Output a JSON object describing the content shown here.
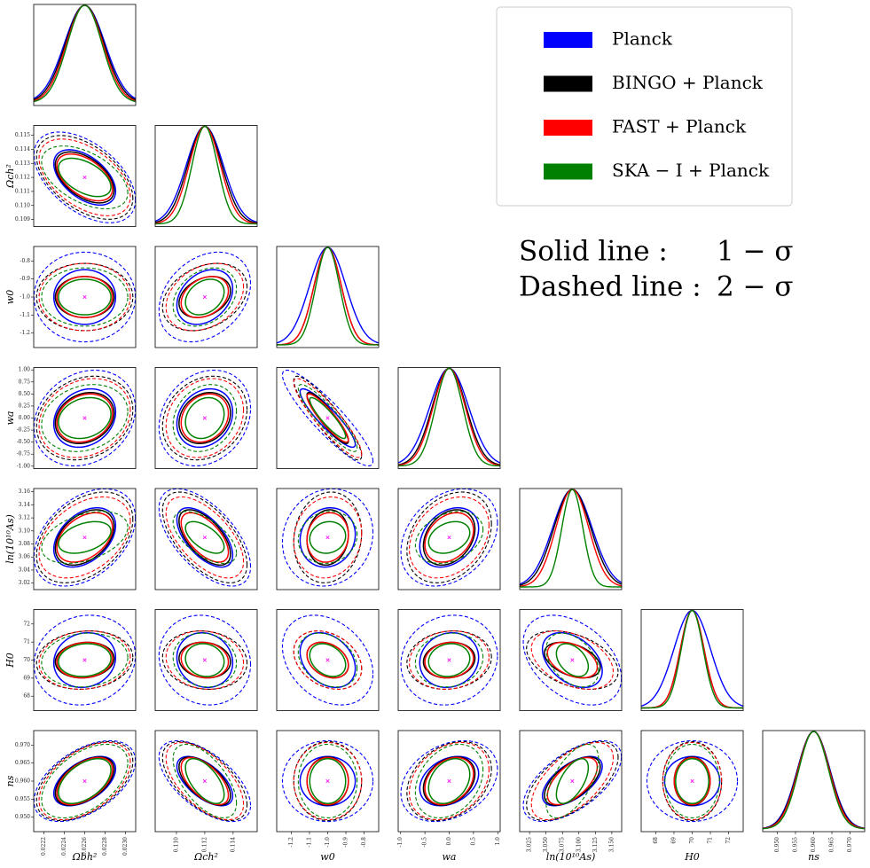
{
  "chart_data": {
    "type": "corner",
    "params": [
      {
        "label": "Ωbh²",
        "fiducial": 0.0226,
        "lim": [
          0.0221,
          0.0231
        ],
        "xticks": [
          0.0222,
          0.0224,
          0.0226,
          0.0228,
          {
            "value": 0.023,
            "label": "0.0230"
          }
        ],
        "yticks": []
      },
      {
        "label": "Ωch²",
        "fiducial": 0.112,
        "lim": [
          0.1085,
          0.1157
        ],
        "xticks": [
          {
            "value": 0.11,
            "label": "0.110"
          },
          0.112,
          0.114
        ],
        "yticks": [
          0.109,
          {
            "value": 0.11,
            "label": "0.110"
          },
          0.111,
          0.112,
          0.113,
          0.114,
          0.115
        ]
      },
      {
        "label": "w0",
        "fiducial": -1,
        "lim": [
          -1.28,
          -0.72
        ],
        "xticks": [
          -1.2,
          -1.1,
          {
            "value": -1,
            "label": "-1.0"
          },
          -0.9,
          -0.8
        ],
        "yticks": [
          -1.2,
          -1.1,
          {
            "value": -1,
            "label": "-1.0"
          },
          -0.9,
          -0.8
        ]
      },
      {
        "label": "wa",
        "fiducial": 0,
        "lim": [
          -1.05,
          1.05
        ],
        "xticks": [
          {
            "value": -1,
            "label": "-1.0"
          },
          -0.5,
          {
            "value": 0,
            "label": "0.0"
          },
          0.5,
          {
            "value": 1,
            "label": "1.0"
          }
        ],
        "yticks": [
          {
            "value": -1,
            "label": "-1.00"
          },
          -0.75,
          {
            "value": -0.5,
            "label": "-0.50"
          },
          -0.25,
          {
            "value": 0,
            "label": "0.00"
          },
          0.25,
          {
            "value": 0.5,
            "label": "0.50"
          },
          0.75,
          {
            "value": 1,
            "label": "1.00"
          }
        ]
      },
      {
        "label": "ln(10¹⁰As)",
        "fiducial": 3.09,
        "lim": [
          3.01,
          3.165
        ],
        "xticks": [
          3.025,
          {
            "value": 3.05,
            "label": "3.050"
          },
          3.075,
          {
            "value": 3.1,
            "label": "3.100"
          },
          3.125,
          {
            "value": 3.15,
            "label": "3.150"
          }
        ],
        "yticks": [
          3.02,
          3.04,
          3.06,
          3.08,
          {
            "value": 3.1,
            "label": "3.10"
          },
          3.12,
          3.14,
          3.16
        ]
      },
      {
        "label": "H0",
        "fiducial": 70,
        "lim": [
          67.2,
          72.8
        ],
        "xticks": [
          68,
          69,
          70,
          71,
          72
        ],
        "yticks": [
          68,
          69,
          70,
          71,
          72
        ]
      },
      {
        "label": "ns",
        "fiducial": 0.96,
        "lim": [
          0.946,
          0.974
        ],
        "xticks": [
          {
            "value": 0.95,
            "label": "0.950"
          },
          0.955,
          {
            "value": 0.96,
            "label": "0.960"
          },
          0.965,
          {
            "value": 0.97,
            "label": "0.970"
          }
        ],
        "yticks": [
          {
            "value": 0.95,
            "label": "0.950"
          },
          0.955,
          {
            "value": 0.96,
            "label": "0.960"
          },
          0.965,
          {
            "value": 0.97,
            "label": "0.970"
          }
        ]
      }
    ],
    "correlations": [
      [
        -0.5
      ],
      [
        0,
        0.3
      ],
      [
        0.2,
        0.2,
        -0.9
      ],
      [
        0.4,
        -0.6,
        0.1,
        0.3
      ],
      [
        0.1,
        -0.1,
        -0.3,
        0.1,
        -0.4
      ],
      [
        0.5,
        -0.6,
        0,
        0.3,
        0.6,
        0
      ]
    ],
    "series": [
      {
        "name": "Planck",
        "color": "#0000ff",
        "sigmas": [
          0.0002,
          0.0013,
          0.1,
          0.4,
          0.03,
          1.0,
          0.0045
        ]
      },
      {
        "name": "BINGO + Planck",
        "color": "#000000",
        "sigmas": [
          0.00019,
          0.0012,
          0.075,
          0.35,
          0.028,
          0.65,
          0.0044
        ]
      },
      {
        "name": "FAST + Planck",
        "color": "#ff0000",
        "sigmas": [
          0.00018,
          0.0011,
          0.075,
          0.33,
          0.025,
          0.65,
          0.0043
        ]
      },
      {
        "name": "SKA − I + Planck",
        "color": "#008000",
        "sigmas": [
          0.00017,
          0.0009,
          0.065,
          0.28,
          0.016,
          0.6,
          0.0041
        ]
      }
    ],
    "contours": [
      {
        "label": "Solid line :",
        "level_label": "1 − σ",
        "level": 1,
        "dashed": false
      },
      {
        "label": "Dashed line :",
        "level_label": "2 − σ",
        "level": 2,
        "dashed": true
      }
    ],
    "fiducial_color": "#ff00ff"
  }
}
